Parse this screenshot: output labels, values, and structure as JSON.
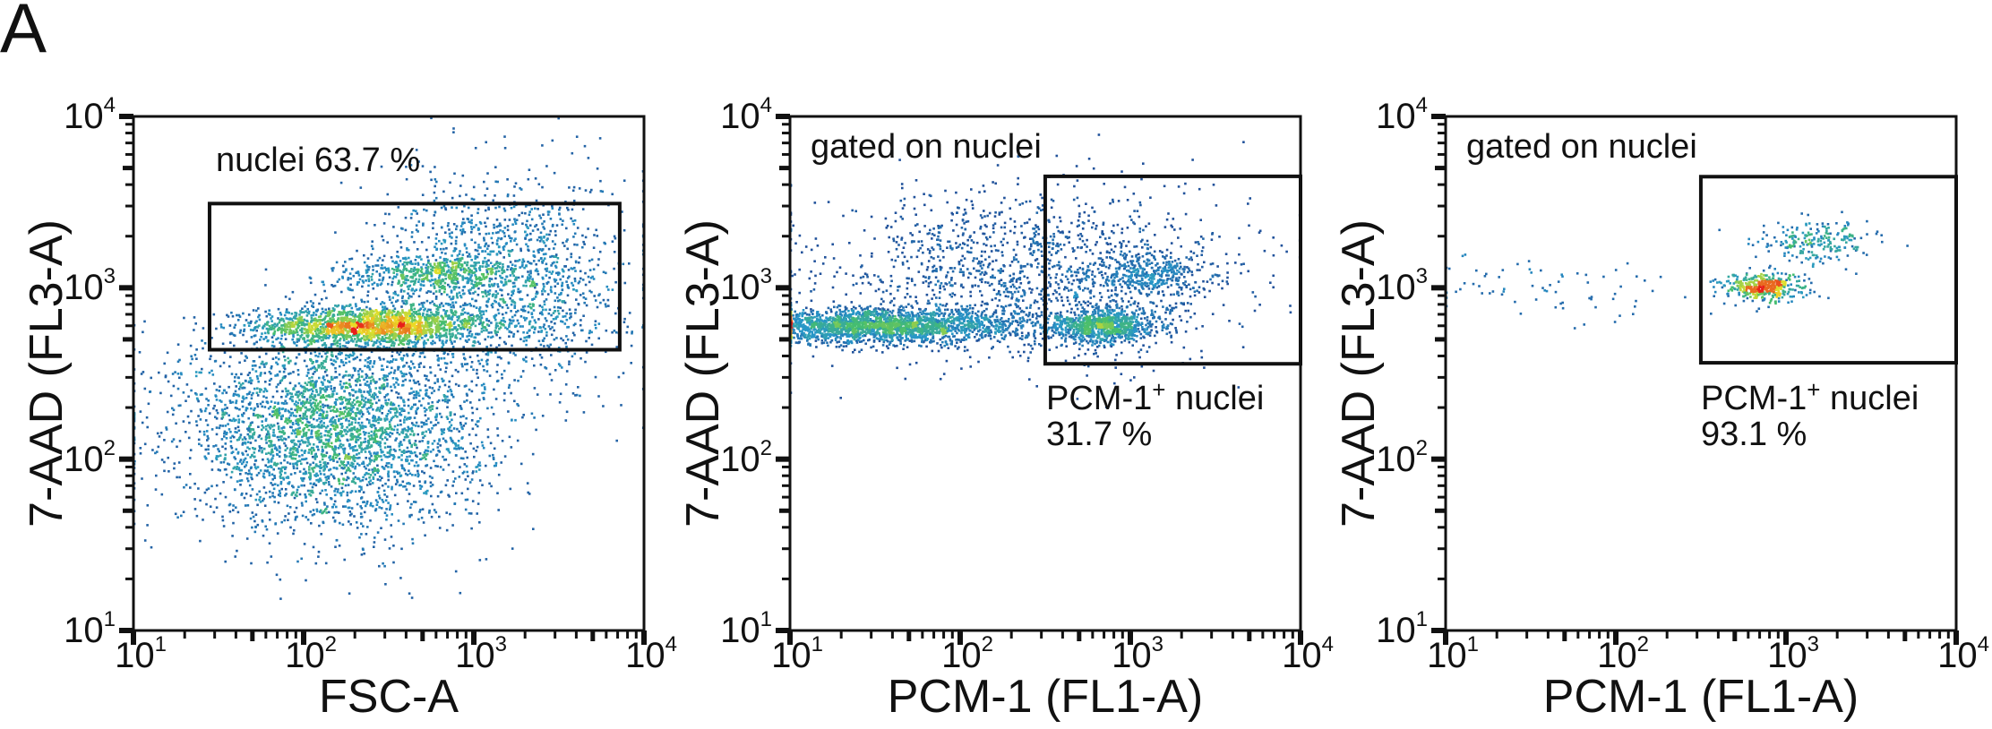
{
  "figure_label": "A",
  "colors": {
    "axis": "#111111",
    "density_low": "#1f3f8f",
    "density_mid": "#3fbf6f",
    "density_high": "#e8201a"
  },
  "chart_data": [
    {
      "type": "scatter",
      "subtype": "flow-cytometry density dot plot",
      "xlabel": "FSC-A",
      "ylabel": "7-AAD (FL3-A)",
      "xscale": "log",
      "yscale": "log",
      "xlim": [
        10,
        10000
      ],
      "ylim": [
        10,
        10000
      ],
      "tick_labels": [
        {
          "base": "10",
          "exp": "1"
        },
        {
          "base": "10",
          "exp": "2"
        },
        {
          "base": "10",
          "exp": "3"
        },
        {
          "base": "10",
          "exp": "4"
        }
      ],
      "ticks": [
        10,
        100,
        1000,
        10000
      ],
      "header_text": "",
      "gate": {
        "x": [
          28,
          7200
        ],
        "y": [
          435,
          3100
        ],
        "label": "nuclei 63.7 %",
        "label_sup": "",
        "label_rest": "",
        "percent": ""
      },
      "populations": [
        {
          "center": [
            250,
            600
          ],
          "spread_decades": [
            0.33,
            0.055
          ],
          "count": 1900
        },
        {
          "center": [
            550,
            1200
          ],
          "spread_decades": [
            0.3,
            0.06
          ],
          "count": 500
        },
        {
          "center": [
            150,
            150
          ],
          "spread_decades": [
            0.45,
            0.28
          ],
          "count": 3400
        },
        {
          "center": [
            1500,
            1100
          ],
          "spread_decades": [
            0.35,
            0.3
          ],
          "count": 1500
        }
      ]
    },
    {
      "type": "scatter",
      "subtype": "flow-cytometry density dot plot",
      "xlabel": "PCM-1 (FL1-A)",
      "ylabel": "7-AAD (FL3-A)",
      "xscale": "log",
      "yscale": "log",
      "xlim": [
        10,
        10000
      ],
      "ylim": [
        10,
        10000
      ],
      "tick_labels": [
        {
          "base": "10",
          "exp": "1"
        },
        {
          "base": "10",
          "exp": "2"
        },
        {
          "base": "10",
          "exp": "3"
        },
        {
          "base": "10",
          "exp": "4"
        }
      ],
      "ticks": [
        10,
        100,
        1000,
        10000
      ],
      "header_text": "gated on nuclei",
      "gate": {
        "x": [
          316,
          10000
        ],
        "y": [
          360,
          4470
        ],
        "label": "PCM-1",
        "label_sup": "+",
        "label_rest": " nuclei",
        "percent": "31.7 %"
      },
      "populations": [
        {
          "center": [
            35,
            600
          ],
          "spread_decades": [
            0.42,
            0.05
          ],
          "count": 2300
        },
        {
          "center": [
            700,
            600
          ],
          "spread_decades": [
            0.16,
            0.05
          ],
          "count": 900
        },
        {
          "center": [
            1300,
            1200
          ],
          "spread_decades": [
            0.18,
            0.06
          ],
          "count": 350
        },
        {
          "center": [
            250,
            1200
          ],
          "spread_decades": [
            0.6,
            0.25
          ],
          "count": 1500
        }
      ]
    },
    {
      "type": "scatter",
      "subtype": "flow-cytometry density dot plot",
      "xlabel": "PCM-1 (FL1-A)",
      "ylabel": "7-AAD (FL3-A)",
      "xscale": "log",
      "yscale": "log",
      "xlim": [
        10,
        10000
      ],
      "ylim": [
        10,
        10000
      ],
      "tick_labels": [
        {
          "base": "10",
          "exp": "1"
        },
        {
          "base": "10",
          "exp": "2"
        },
        {
          "base": "10",
          "exp": "3"
        },
        {
          "base": "10",
          "exp": "4"
        }
      ],
      "ticks": [
        10,
        100,
        1000,
        10000
      ],
      "header_text": "gated on nuclei",
      "gate": {
        "x": [
          316,
          10000
        ],
        "y": [
          365,
          4450
        ],
        "label": "PCM-1",
        "label_sup": "+",
        "label_rest": " nuclei",
        "percent": "93.1 %"
      },
      "populations": [
        {
          "center": [
            750,
            1000
          ],
          "spread_decades": [
            0.12,
            0.04
          ],
          "count": 420
        },
        {
          "center": [
            1500,
            1850
          ],
          "spread_decades": [
            0.16,
            0.07
          ],
          "count": 220
        },
        {
          "center": [
            40,
            1000
          ],
          "spread_decades": [
            0.4,
            0.1
          ],
          "count": 70
        }
      ]
    }
  ]
}
